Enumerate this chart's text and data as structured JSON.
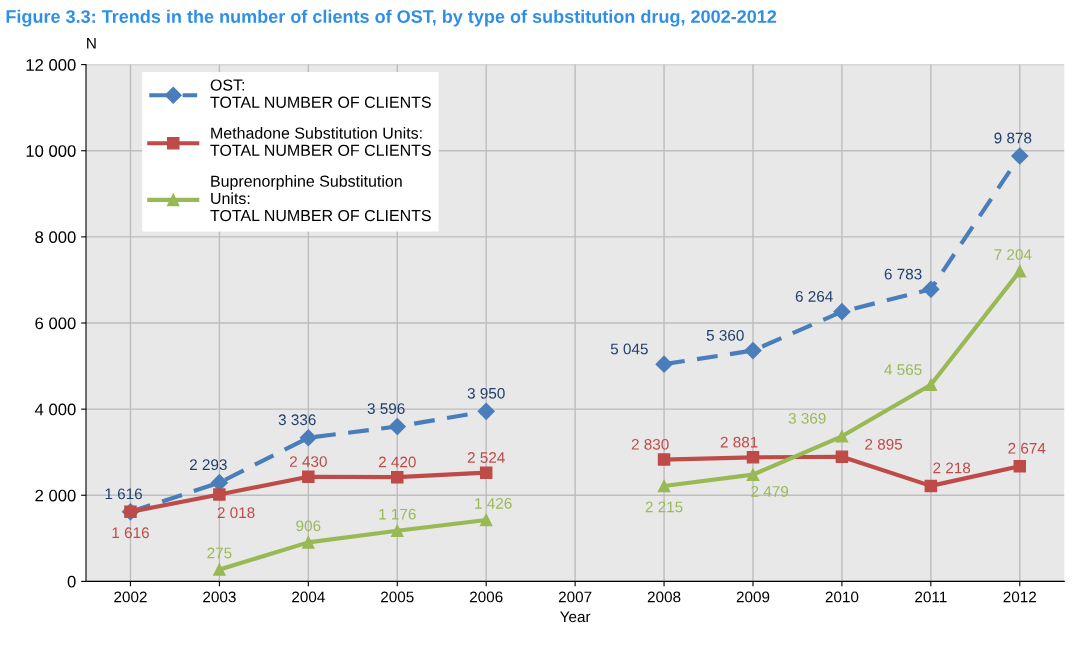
{
  "chart_data": {
    "type": "line",
    "title": "Figure 3.3: Trends in the number of clients of OST, by type of substitution drug, 2002-2012",
    "xlabel": "Year",
    "ylabel": "N",
    "categories": [
      "2002",
      "2003",
      "2004",
      "2005",
      "2006",
      "2007",
      "2008",
      "2009",
      "2010",
      "2011",
      "2012"
    ],
    "series": [
      {
        "name": "OST:\nTOTAL NUMBER OF CLIENTS",
        "color": "#4a7ebb",
        "line_style": "dashed",
        "marker": "diamond",
        "values": [
          1616,
          2293,
          3336,
          3596,
          3950,
          null,
          5045,
          5360,
          6264,
          6783,
          9878
        ],
        "value_labels": [
          "1 616",
          "2 293",
          "3 336",
          "3 596",
          "3 950",
          null,
          "5 045",
          "5 360",
          "6 264",
          "6 783",
          "9 878"
        ]
      },
      {
        "name": "Methadone Substitution Units:\nTOTAL NUMBER OF CLIENTS",
        "color": "#be4b48",
        "line_style": "solid",
        "marker": "square",
        "values": [
          1616,
          2018,
          2430,
          2420,
          2524,
          null,
          2830,
          2881,
          2895,
          2218,
          2674
        ],
        "value_labels": [
          "1 616",
          "2 018",
          "2 430",
          "2 420",
          "2 524",
          null,
          "2 830",
          "2 881",
          "2 895",
          "2 218",
          "2 674"
        ]
      },
      {
        "name": "Buprenorphine Substitution\nUnits:\nTOTAL NUMBER OF CLIENTS",
        "color": "#98b954",
        "line_style": "solid",
        "marker": "triangle",
        "values": [
          null,
          275,
          906,
          1176,
          1426,
          null,
          2215,
          2479,
          3369,
          4565,
          7204
        ],
        "value_labels": [
          null,
          "275",
          "906",
          "1 176",
          "1 426",
          null,
          "2 215",
          "2 479",
          "3 369",
          "4 565",
          "7 204"
        ]
      }
    ],
    "ylim": [
      0,
      12000
    ],
    "yticks": [
      {
        "value": 0,
        "label": "0"
      },
      {
        "value": 2000,
        "label": "2 000"
      },
      {
        "value": 4000,
        "label": "4 000"
      },
      {
        "value": 6000,
        "label": "6 000"
      },
      {
        "value": 8000,
        "label": "8 000"
      },
      {
        "value": 10000,
        "label": "10 000"
      },
      {
        "value": 12000,
        "label": "12 000"
      }
    ],
    "grid": true,
    "legend": "top left"
  }
}
